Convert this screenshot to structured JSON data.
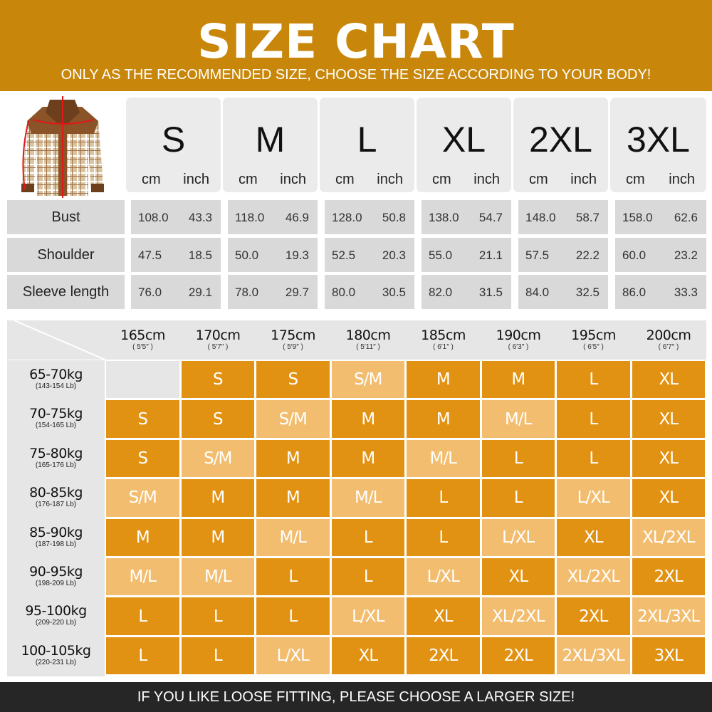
{
  "header": {
    "title": "SIZE CHART",
    "subtitle": "ONLY AS THE RECOMMENDED SIZE, CHOOSE THE SIZE ACCORDING TO YOUR BODY!"
  },
  "colors": {
    "header": "#c8870a",
    "single_size": "#e29212",
    "between_sizes": "#f2bd6f",
    "footer": "#262626"
  },
  "measurements": {
    "sizes": [
      "S",
      "M",
      "L",
      "XL",
      "2XL",
      "3XL"
    ],
    "unit_cm": "cm",
    "unit_inch": "inch",
    "rows": [
      {
        "label": "Bust",
        "values": [
          [
            "108.0",
            "43.3"
          ],
          [
            "118.0",
            "46.9"
          ],
          [
            "128.0",
            "50.8"
          ],
          [
            "138.0",
            "54.7"
          ],
          [
            "148.0",
            "58.7"
          ],
          [
            "158.0",
            "62.6"
          ]
        ]
      },
      {
        "label": "Shoulder",
        "values": [
          [
            "47.5",
            "18.5"
          ],
          [
            "50.0",
            "19.3"
          ],
          [
            "52.5",
            "20.3"
          ],
          [
            "55.0",
            "21.1"
          ],
          [
            "57.5",
            "22.2"
          ],
          [
            "60.0",
            "23.2"
          ]
        ]
      },
      {
        "label": "Sleeve length",
        "values": [
          [
            "76.0",
            "29.1"
          ],
          [
            "78.0",
            "29.7"
          ],
          [
            "80.0",
            "30.5"
          ],
          [
            "82.0",
            "31.5"
          ],
          [
            "84.0",
            "32.5"
          ],
          [
            "86.0",
            "33.3"
          ]
        ]
      }
    ]
  },
  "recommendation": {
    "heights": [
      {
        "cm": "165cm",
        "ft": "( 5′5″ )"
      },
      {
        "cm": "170cm",
        "ft": "( 5′7″ )"
      },
      {
        "cm": "175cm",
        "ft": "( 5′9″ )"
      },
      {
        "cm": "180cm",
        "ft": "( 5′11″ )"
      },
      {
        "cm": "185cm",
        "ft": "( 6′1″ )"
      },
      {
        "cm": "190cm",
        "ft": "( 6′3″ )"
      },
      {
        "cm": "195cm",
        "ft": "( 6′5″ )"
      },
      {
        "cm": "200cm",
        "ft": "( 6′7″ )"
      }
    ],
    "weights": [
      {
        "kg": "65-70kg",
        "lb": "(143-154 Lb)",
        "sizes": [
          "",
          "S",
          "S",
          "S/M",
          "M",
          "M",
          "L",
          "XL"
        ]
      },
      {
        "kg": "70-75kg",
        "lb": "(154-165 Lb)",
        "sizes": [
          "S",
          "S",
          "S/M",
          "M",
          "M",
          "M/L",
          "L",
          "XL"
        ]
      },
      {
        "kg": "75-80kg",
        "lb": "(165-176 Lb)",
        "sizes": [
          "S",
          "S/M",
          "M",
          "M",
          "M/L",
          "L",
          "L",
          "XL"
        ]
      },
      {
        "kg": "80-85kg",
        "lb": "(176-187 Lb)",
        "sizes": [
          "S/M",
          "M",
          "M",
          "M/L",
          "L",
          "L",
          "L/XL",
          "XL"
        ]
      },
      {
        "kg": "85-90kg",
        "lb": "(187-198 Lb)",
        "sizes": [
          "M",
          "M",
          "M/L",
          "L",
          "L",
          "L/XL",
          "XL",
          "XL/2XL"
        ]
      },
      {
        "kg": "90-95kg",
        "lb": "(198-209 Lb)",
        "sizes": [
          "M/L",
          "M/L",
          "L",
          "L",
          "L/XL",
          "XL",
          "XL/2XL",
          "2XL"
        ]
      },
      {
        "kg": "95-100kg",
        "lb": "(209-220 Lb)",
        "sizes": [
          "L",
          "L",
          "L",
          "L/XL",
          "XL",
          "XL/2XL",
          "2XL",
          "2XL/3XL"
        ]
      },
      {
        "kg": "100-105kg",
        "lb": "(220-231 Lb)",
        "sizes": [
          "L",
          "L",
          "L/XL",
          "XL",
          "2XL",
          "2XL",
          "2XL/3XL",
          "3XL"
        ]
      }
    ]
  },
  "footer": {
    "text": "IF YOU LIKE LOOSE FITTING, PLEASE CHOOSE A LARGER SIZE!"
  }
}
